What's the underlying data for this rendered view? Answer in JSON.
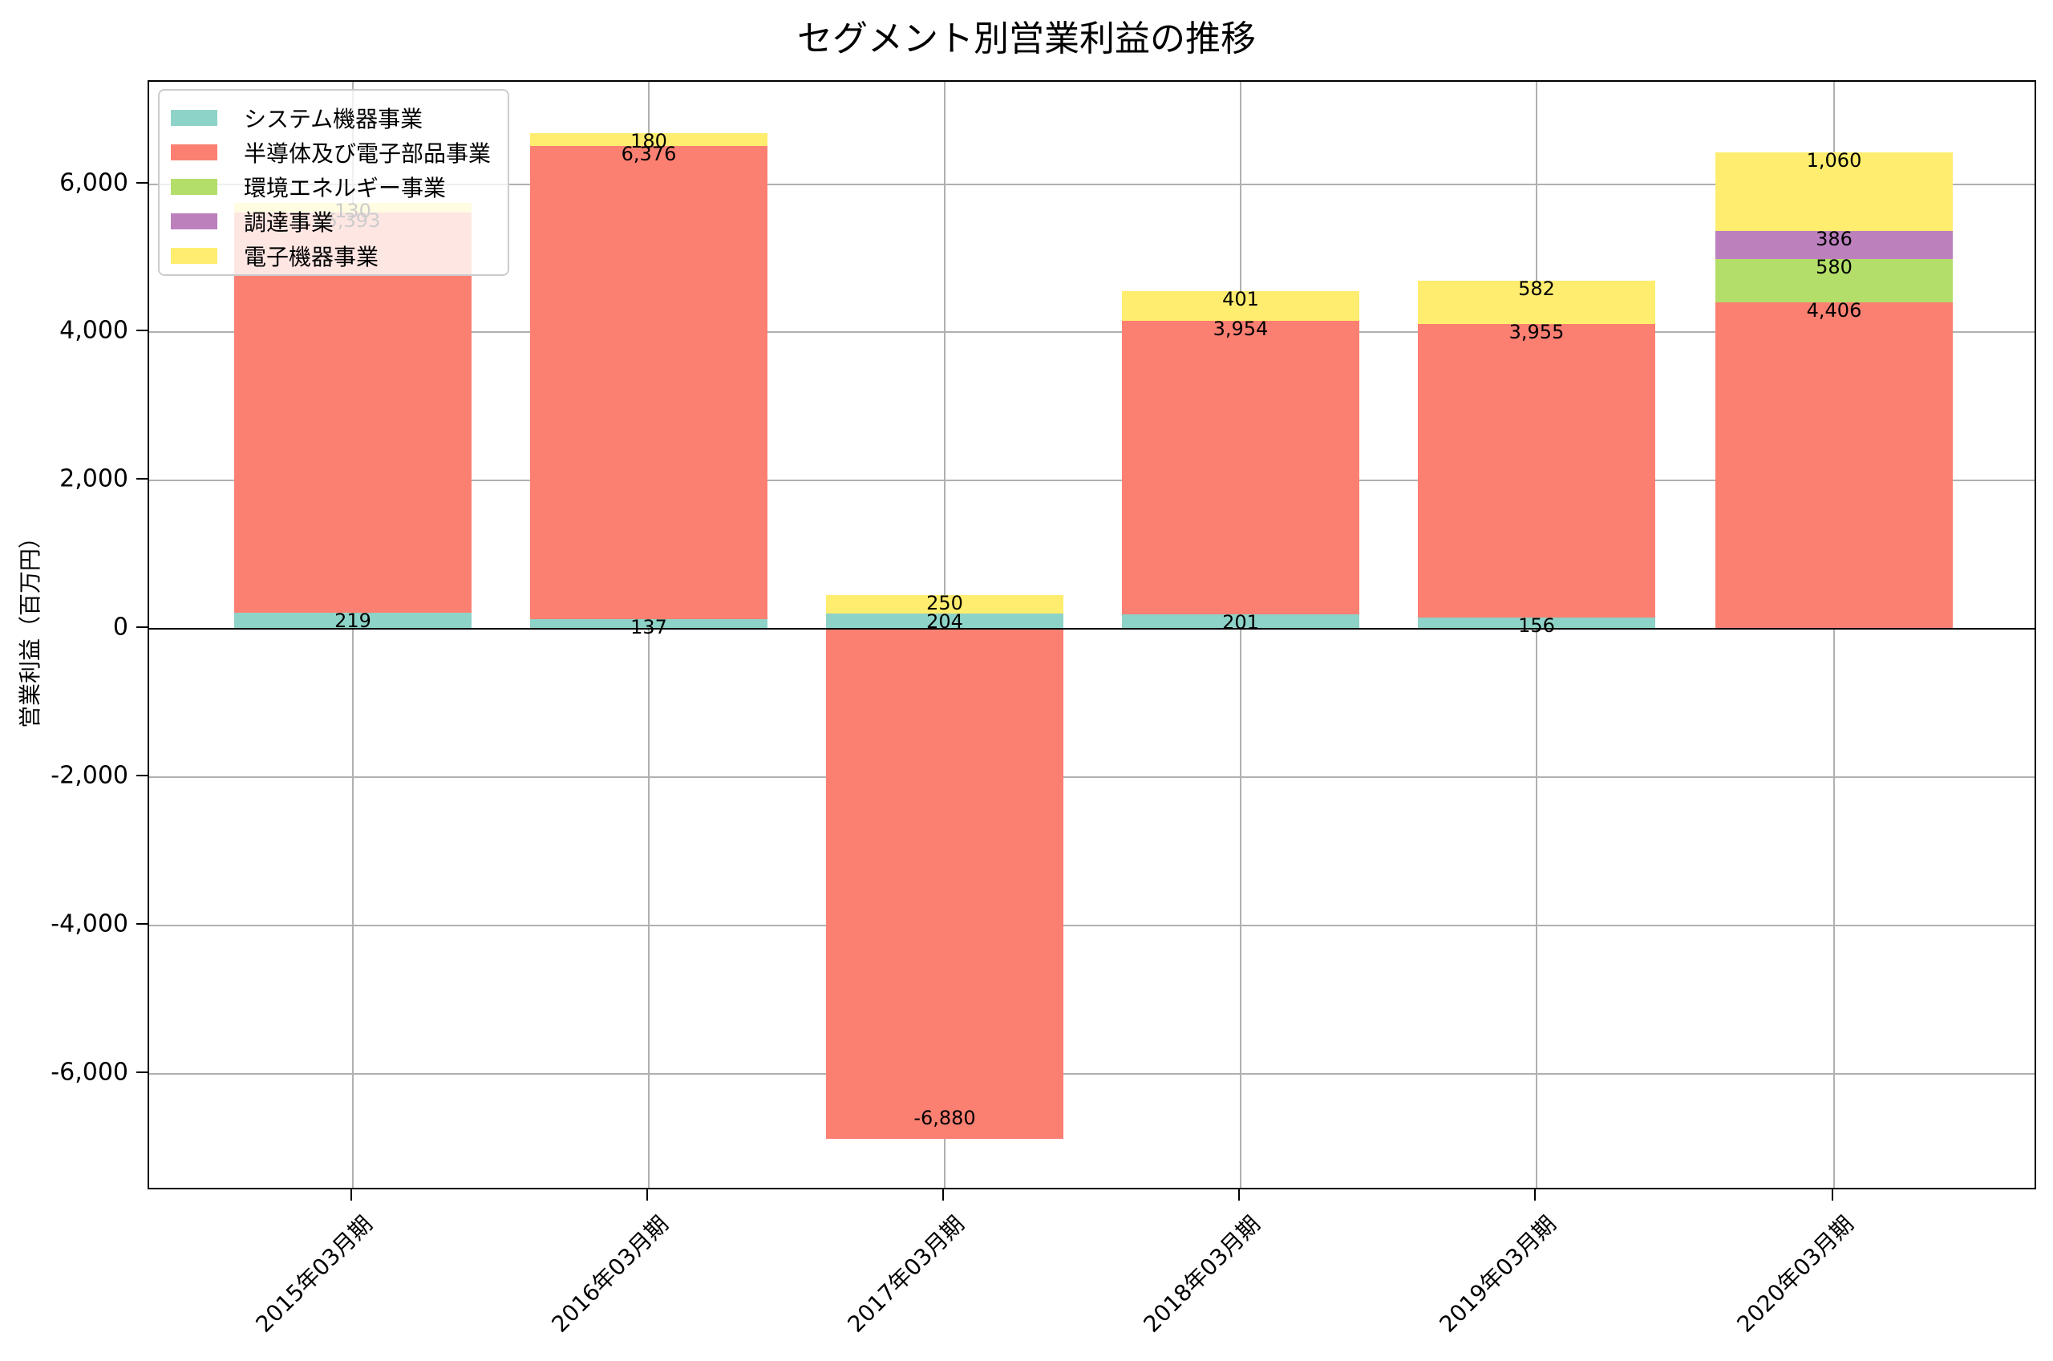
{
  "title": "セグメント別営業利益の推移",
  "chart_data": {
    "type": "bar",
    "stacked": true,
    "title": "セグメント別営業利益の推移",
    "xlabel": "",
    "ylabel": "営業利益（百万円）",
    "ylim": [
      -7580,
      7380
    ],
    "yticks": [
      "-6,000",
      "-4,000",
      "-2,000",
      "0",
      "2,000",
      "4,000",
      "6,000"
    ],
    "grid": true,
    "legend_position": "upper left",
    "categories": [
      "2015年03月期",
      "2016年03月期",
      "2017年03月期",
      "2018年03月期",
      "2019年03月期",
      "2020年03月期"
    ],
    "series": [
      {
        "name": "システム機器事業",
        "color": "#8dd3c7",
        "values": [
          219,
          137,
          204,
          201,
          156,
          0
        ]
      },
      {
        "name": "半導体及び電子部品事業",
        "color": "#fb8072",
        "values": [
          5393,
          6376,
          -6880,
          3954,
          3955,
          4406
        ]
      },
      {
        "name": "環境エネルギー事業",
        "color": "#b3de69",
        "values": [
          0,
          0,
          0,
          0,
          0,
          580
        ]
      },
      {
        "name": "調達事業",
        "color": "#bc80bd",
        "values": [
          0,
          0,
          0,
          0,
          0,
          386
        ]
      },
      {
        "name": "電子機器事業",
        "color": "#ffed6f",
        "values": [
          130,
          180,
          250,
          401,
          582,
          1060
        ]
      }
    ],
    "data_labels": [
      [
        "219",
        "5,393",
        "130"
      ],
      [
        "137",
        "6,376",
        "180"
      ],
      [
        "204",
        "-6,880",
        "250"
      ],
      [
        "201",
        "3,954",
        "401"
      ],
      [
        "156",
        "3,955",
        "582"
      ],
      [
        "4,406",
        "580",
        "386",
        "1,060"
      ]
    ]
  },
  "legend": {
    "items": [
      {
        "label": "システム機器事業",
        "color": "#8dd3c7"
      },
      {
        "label": "半導体及び電子部品事業",
        "color": "#fb8072"
      },
      {
        "label": "環境エネルギー事業",
        "color": "#b3de69"
      },
      {
        "label": "調達事業",
        "color": "#bc80bd"
      },
      {
        "label": "電子機器事業",
        "color": "#ffed6f"
      }
    ]
  }
}
